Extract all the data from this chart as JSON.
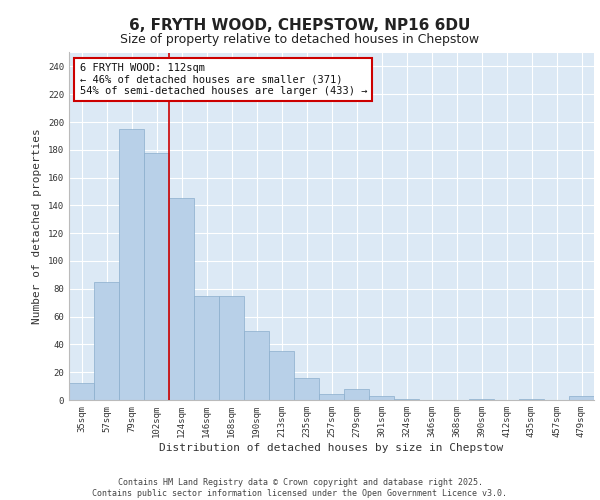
{
  "title": "6, FRYTH WOOD, CHEPSTOW, NP16 6DU",
  "subtitle": "Size of property relative to detached houses in Chepstow",
  "xlabel": "Distribution of detached houses by size in Chepstow",
  "ylabel": "Number of detached properties",
  "categories": [
    "35sqm",
    "57sqm",
    "79sqm",
    "102sqm",
    "124sqm",
    "146sqm",
    "168sqm",
    "190sqm",
    "213sqm",
    "235sqm",
    "257sqm",
    "279sqm",
    "301sqm",
    "324sqm",
    "346sqm",
    "368sqm",
    "390sqm",
    "412sqm",
    "435sqm",
    "457sqm",
    "479sqm"
  ],
  "values": [
    12,
    85,
    195,
    178,
    145,
    75,
    75,
    50,
    35,
    16,
    4,
    8,
    3,
    1,
    0,
    0,
    1,
    0,
    1,
    0,
    3
  ],
  "bar_color": "#b8d0e8",
  "bar_edge_color": "#8aaecc",
  "background_color": "#dce9f5",
  "grid_color": "#ffffff",
  "vline_x_idx": 3,
  "vline_color": "#cc0000",
  "annotation_text": "6 FRYTH WOOD: 112sqm\n← 46% of detached houses are smaller (371)\n54% of semi-detached houses are larger (433) →",
  "annotation_box_color": "#ffffff",
  "annotation_box_edge_color": "#cc0000",
  "ylim": [
    0,
    250
  ],
  "yticks": [
    0,
    20,
    40,
    60,
    80,
    100,
    120,
    140,
    160,
    180,
    200,
    220,
    240
  ],
  "footer_text": "Contains HM Land Registry data © Crown copyright and database right 2025.\nContains public sector information licensed under the Open Government Licence v3.0.",
  "title_fontsize": 11,
  "subtitle_fontsize": 9,
  "label_fontsize": 8,
  "tick_fontsize": 6.5,
  "annotation_fontsize": 7.5
}
